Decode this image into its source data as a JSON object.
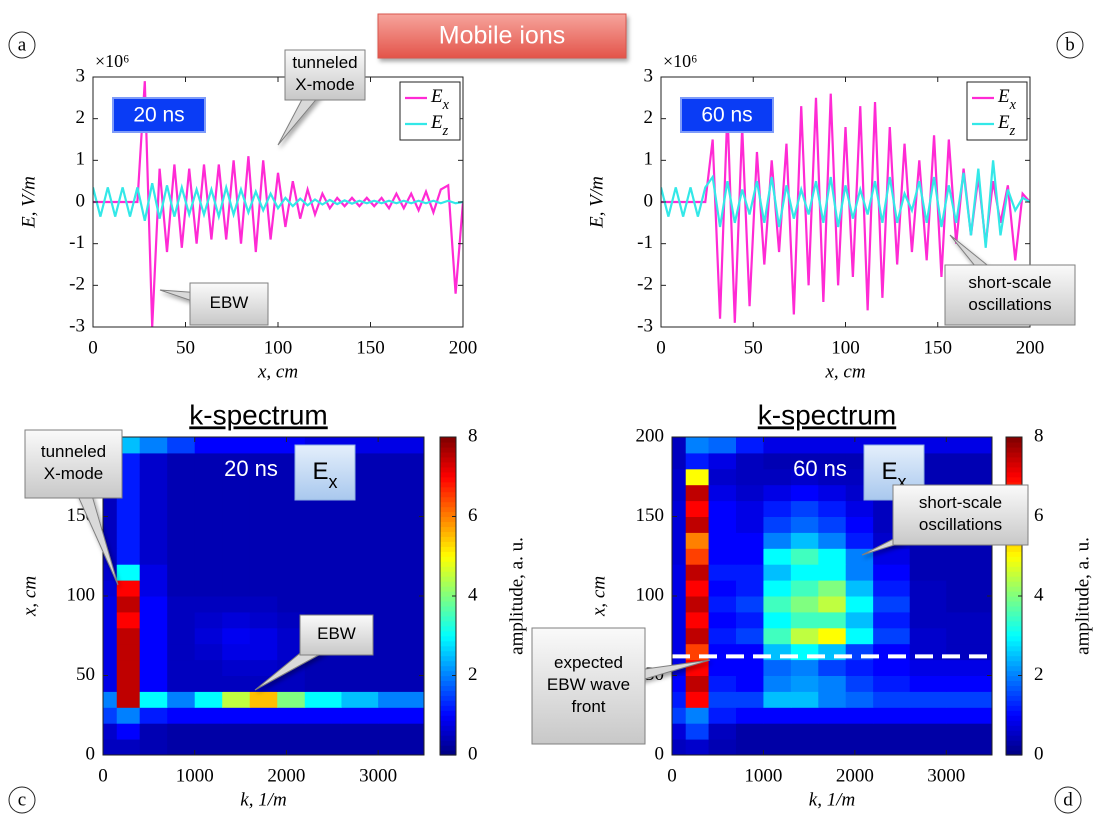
{
  "figure_title": "Mobile ions",
  "chart_data": [
    {
      "type": "line",
      "panel_label": "a",
      "time_label": "20 ns",
      "y_scale_label": "×10⁶",
      "x_label": "x, cm",
      "y_label": "E, V/m",
      "legend": "upper right",
      "x": [
        0,
        4,
        8,
        12,
        16,
        20,
        24,
        28,
        32,
        36,
        40,
        44,
        48,
        52,
        56,
        60,
        64,
        68,
        72,
        76,
        80,
        84,
        88,
        92,
        96,
        100,
        104,
        108,
        112,
        116,
        120,
        124,
        128,
        132,
        136,
        140,
        144,
        148,
        152,
        156,
        160,
        164,
        168,
        172,
        176,
        180,
        184,
        188,
        192,
        196,
        200
      ],
      "series": [
        {
          "name": "Ex",
          "color": "#ff2ad4",
          "values": [
            0,
            0,
            0,
            0,
            0,
            0,
            0,
            2.9,
            -3,
            0.8,
            -1.2,
            0.9,
            -1.1,
            0.8,
            -1.0,
            0.9,
            -0.9,
            0.9,
            -0.9,
            1.0,
            -1.0,
            1.1,
            -1.2,
            1.0,
            -0.9,
            0.7,
            -0.6,
            0.5,
            -0.4,
            0.3,
            -0.3,
            0.2,
            -0.15,
            0.1,
            -0.1,
            0.1,
            -0.1,
            0.1,
            -0.1,
            0.1,
            -0.15,
            0.2,
            -0.15,
            0.2,
            -0.2,
            0.25,
            -0.25,
            0.3,
            0.4,
            -2.2,
            0
          ]
        },
        {
          "name": "Ez",
          "color": "#33e8e8",
          "values": [
            0.35,
            -0.35,
            0.35,
            -0.35,
            0.35,
            -0.35,
            0.35,
            -0.45,
            0.45,
            -0.4,
            0.4,
            -0.35,
            0.35,
            -0.3,
            0.3,
            -0.3,
            0.3,
            -0.35,
            0.35,
            -0.3,
            0.3,
            -0.25,
            0.25,
            -0.2,
            0.2,
            -0.15,
            0.1,
            -0.1,
            0.08,
            -0.08,
            0.06,
            -0.06,
            0.05,
            -0.05,
            0.04,
            -0.04,
            0.03,
            -0.03,
            0.03,
            -0.03,
            0.03,
            -0.03,
            0.03,
            -0.03,
            0.03,
            -0.03,
            0.03,
            -0.03,
            0.03,
            -0.03,
            0
          ]
        }
      ],
      "xlim": [
        0,
        200
      ],
      "ylim": [
        -3,
        3
      ],
      "xticks": [
        0,
        50,
        100,
        150,
        200
      ],
      "yticks": [
        -3,
        -2,
        -1,
        0,
        1,
        2,
        3
      ],
      "annotations": [
        {
          "lines": [
            "tunneled",
            "X-mode"
          ]
        },
        {
          "lines": [
            "EBW"
          ]
        }
      ]
    },
    {
      "type": "line",
      "panel_label": "b",
      "time_label": "60 ns",
      "y_scale_label": "×10⁶",
      "x_label": "x, cm",
      "y_label": "E, V/m",
      "legend": "upper right",
      "x": [
        0,
        4,
        8,
        12,
        16,
        20,
        24,
        28,
        32,
        36,
        40,
        44,
        48,
        52,
        56,
        60,
        64,
        68,
        72,
        76,
        80,
        84,
        88,
        92,
        96,
        100,
        104,
        108,
        112,
        116,
        120,
        124,
        128,
        132,
        136,
        140,
        144,
        148,
        152,
        156,
        160,
        164,
        168,
        172,
        176,
        180,
        184,
        188,
        192,
        196,
        200
      ],
      "series": [
        {
          "name": "Ex",
          "color": "#ff2ad4",
          "values": [
            0,
            0,
            0,
            0,
            0,
            0,
            0,
            1.5,
            -2.8,
            2.2,
            -2.9,
            1.8,
            -2.5,
            1.2,
            -1.5,
            1.0,
            -1.2,
            1.4,
            -2.7,
            2.3,
            -2.0,
            2.5,
            -2.4,
            2.6,
            -2.0,
            1.8,
            -1.8,
            2.3,
            -2.6,
            2.4,
            -2.3,
            1.8,
            -1.5,
            1.4,
            -1.2,
            1.0,
            -1.4,
            1.6,
            -1.8,
            1.5,
            -1.0,
            0.8,
            -0.8,
            0.6,
            -1.0,
            0.5,
            -0.5,
            0.4,
            -1.4,
            0.2,
            0
          ]
        },
        {
          "name": "Ez",
          "color": "#33e8e8",
          "values": [
            0.35,
            -0.35,
            0.35,
            -0.35,
            0.35,
            -0.35,
            0.35,
            0.6,
            -0.6,
            0.5,
            -0.5,
            0.3,
            -0.3,
            0.5,
            -0.5,
            0.6,
            -0.6,
            0.4,
            -0.4,
            0.3,
            -0.3,
            0.5,
            -0.5,
            0.6,
            -0.6,
            0.4,
            -0.4,
            0.3,
            -0.3,
            0.5,
            -0.5,
            0.6,
            -0.5,
            0.2,
            -0.2,
            0.5,
            -0.5,
            0.6,
            -0.6,
            0.4,
            -0.5,
            0.7,
            -0.8,
            0.8,
            -1.1,
            1.0,
            -0.8,
            0.3,
            -0.2,
            0.1,
            0
          ]
        }
      ],
      "xlim": [
        0,
        200
      ],
      "ylim": [
        -3,
        3
      ],
      "xticks": [
        0,
        50,
        100,
        150,
        200
      ],
      "yticks": [
        -3,
        -2,
        -1,
        0,
        1,
        2,
        3
      ],
      "annotations": [
        {
          "lines": [
            "short-scale",
            "oscillations"
          ]
        }
      ]
    },
    {
      "type": "heatmap",
      "panel_label": "c",
      "title": "k-spectrum",
      "time_label": "20 ns",
      "field_label": "Ex",
      "x_label": "k, 1/m",
      "y_label": "x, cm",
      "colorbar_label": "amplitude, a. u.",
      "k_edges": [
        0,
        150,
        400,
        700,
        1000,
        1300,
        1600,
        1900,
        2200,
        2600,
        3000,
        3500
      ],
      "x_edges": [
        0,
        10,
        20,
        30,
        40,
        50,
        60,
        70,
        80,
        90,
        100,
        110,
        120,
        130,
        140,
        150,
        160,
        170,
        180,
        190,
        200
      ],
      "z": [
        [
          0.5,
          0.5,
          0.4,
          0.3,
          0.3,
          0.3,
          0.3,
          0.3,
          0.3,
          0.3,
          0.3
        ],
        [
          0.6,
          1.0,
          0.4,
          0.3,
          0.3,
          0.3,
          0.3,
          0.3,
          0.3,
          0.3,
          0.3
        ],
        [
          1.5,
          2.0,
          1.2,
          1.0,
          1.0,
          1.0,
          1.0,
          1.0,
          1.0,
          1.0,
          1.0
        ],
        [
          2.0,
          7.5,
          3.0,
          2.0,
          3.0,
          4.5,
          5.5,
          4.0,
          3.0,
          2.5,
          2.0
        ],
        [
          0.8,
          7.5,
          1.0,
          0.5,
          0.5,
          0.5,
          0.5,
          0.5,
          0.4,
          0.4,
          0.4
        ],
        [
          0.8,
          7.5,
          1.0,
          0.5,
          0.5,
          0.6,
          0.6,
          0.5,
          0.4,
          0.4,
          0.4
        ],
        [
          0.8,
          7.5,
          1.0,
          0.5,
          0.6,
          0.8,
          0.8,
          0.6,
          0.4,
          0.4,
          0.4
        ],
        [
          0.8,
          7.5,
          1.0,
          0.5,
          0.7,
          0.9,
          0.8,
          0.6,
          0.4,
          0.4,
          0.4
        ],
        [
          0.8,
          7.0,
          1.0,
          0.5,
          0.6,
          0.7,
          0.6,
          0.5,
          0.4,
          0.4,
          0.4
        ],
        [
          0.8,
          7.5,
          1.0,
          0.5,
          0.5,
          0.5,
          0.5,
          0.4,
          0.4,
          0.4,
          0.4
        ],
        [
          0.7,
          7.0,
          0.8,
          0.4,
          0.4,
          0.4,
          0.4,
          0.4,
          0.4,
          0.4,
          0.4
        ],
        [
          0.6,
          3.0,
          0.8,
          0.4,
          0.4,
          0.4,
          0.4,
          0.4,
          0.4,
          0.4,
          0.4
        ],
        [
          0.5,
          1.2,
          0.6,
          0.4,
          0.4,
          0.4,
          0.4,
          0.4,
          0.4,
          0.4,
          0.4
        ],
        [
          0.5,
          1.2,
          0.6,
          0.4,
          0.4,
          0.4,
          0.4,
          0.4,
          0.4,
          0.4,
          0.4
        ],
        [
          0.5,
          1.2,
          0.6,
          0.4,
          0.4,
          0.4,
          0.4,
          0.4,
          0.4,
          0.4,
          0.4
        ],
        [
          0.5,
          1.2,
          0.6,
          0.4,
          0.4,
          0.4,
          0.4,
          0.4,
          0.4,
          0.4,
          0.4
        ],
        [
          0.5,
          1.2,
          0.6,
          0.4,
          0.4,
          0.4,
          0.4,
          0.4,
          0.4,
          0.4,
          0.4
        ],
        [
          0.5,
          1.2,
          0.6,
          0.4,
          0.4,
          0.4,
          0.4,
          0.4,
          0.4,
          0.4,
          0.4
        ],
        [
          0.5,
          1.2,
          0.6,
          0.4,
          0.4,
          0.4,
          0.4,
          0.4,
          0.4,
          0.4,
          0.4
        ],
        [
          0.5,
          2.5,
          2.0,
          1.5,
          1.0,
          1.0,
          1.0,
          1.0,
          0.8,
          0.8,
          0.8
        ]
      ],
      "xlim": [
        0,
        3500
      ],
      "ylim": [
        0,
        200
      ],
      "xticks": [
        0,
        1000,
        2000,
        3000
      ],
      "yticks": [
        0,
        50,
        100,
        150
      ],
      "clim": [
        0,
        8
      ],
      "cticks": [
        0,
        2,
        4,
        6,
        8
      ],
      "annotations": [
        {
          "lines": [
            "tunneled",
            "X-mode"
          ]
        },
        {
          "lines": [
            "EBW"
          ]
        }
      ]
    },
    {
      "type": "heatmap",
      "panel_label": "d",
      "title": "k-spectrum",
      "time_label": "60 ns",
      "field_label": "Ex",
      "x_label": "k, 1/m",
      "y_label": "x, cm",
      "colorbar_label": "amplitude, a. u.",
      "k_edges": [
        0,
        150,
        400,
        700,
        1000,
        1300,
        1600,
        1900,
        2200,
        2600,
        3000,
        3500
      ],
      "x_edges": [
        0,
        10,
        20,
        30,
        40,
        50,
        60,
        70,
        80,
        90,
        100,
        110,
        120,
        130,
        140,
        150,
        160,
        170,
        180,
        190,
        200
      ],
      "z": [
        [
          0.5,
          0.6,
          0.4,
          0.3,
          0.3,
          0.3,
          0.3,
          0.3,
          0.3,
          0.3,
          0.3
        ],
        [
          0.7,
          1.5,
          0.5,
          0.3,
          0.3,
          0.3,
          0.3,
          0.3,
          0.3,
          0.3,
          0.3
        ],
        [
          1.5,
          2.0,
          1.2,
          1.0,
          1.0,
          1.0,
          1.0,
          1.0,
          1.0,
          1.0,
          1.0
        ],
        [
          1.2,
          7.0,
          1.5,
          1.5,
          2.5,
          2.5,
          2.0,
          1.8,
          1.5,
          1.5,
          1.5
        ],
        [
          1.0,
          7.5,
          1.2,
          1.0,
          2.0,
          2.2,
          2.0,
          1.5,
          1.2,
          1.0,
          1.0
        ],
        [
          0.8,
          7.0,
          1.0,
          1.0,
          1.8,
          2.0,
          1.5,
          1.2,
          1.0,
          0.8,
          0.8
        ],
        [
          0.8,
          6.5,
          1.0,
          1.0,
          2.5,
          3.0,
          2.5,
          1.5,
          1.0,
          0.6,
          0.5
        ],
        [
          0.8,
          7.5,
          1.2,
          1.5,
          3.5,
          4.5,
          5.0,
          3.0,
          1.5,
          0.6,
          0.5
        ],
        [
          0.8,
          7.0,
          1.0,
          1.2,
          3.0,
          3.5,
          3.5,
          2.5,
          1.2,
          0.5,
          0.5
        ],
        [
          0.8,
          7.5,
          1.2,
          1.5,
          3.5,
          4.0,
          4.5,
          3.0,
          1.5,
          0.5,
          0.4
        ],
        [
          0.8,
          7.0,
          1.0,
          1.2,
          3.0,
          3.5,
          4.0,
          2.5,
          1.2,
          0.5,
          0.4
        ],
        [
          0.8,
          7.5,
          1.2,
          1.2,
          2.5,
          3.0,
          3.0,
          2.0,
          1.0,
          0.4,
          0.4
        ],
        [
          0.7,
          6.5,
          1.0,
          1.0,
          3.0,
          3.5,
          3.0,
          2.0,
          0.8,
          0.4,
          0.4
        ],
        [
          0.7,
          6.0,
          1.0,
          1.0,
          2.0,
          2.5,
          2.0,
          1.2,
          0.6,
          0.4,
          0.4
        ],
        [
          0.7,
          7.5,
          1.0,
          0.8,
          1.5,
          1.8,
          1.5,
          1.0,
          0.5,
          0.4,
          0.4
        ],
        [
          0.7,
          7.0,
          1.0,
          0.8,
          1.2,
          1.5,
          1.2,
          0.8,
          0.5,
          0.4,
          0.4
        ],
        [
          0.6,
          7.5,
          0.8,
          0.6,
          0.8,
          1.0,
          0.8,
          0.6,
          0.4,
          0.4,
          0.4
        ],
        [
          0.6,
          5.0,
          0.6,
          0.5,
          0.5,
          0.6,
          0.5,
          0.5,
          0.4,
          0.4,
          0.4
        ],
        [
          0.5,
          1.2,
          0.8,
          0.5,
          0.4,
          0.4,
          0.4,
          0.4,
          0.4,
          0.4,
          0.4
        ],
        [
          0.5,
          2.0,
          1.8,
          1.2,
          0.8,
          0.8,
          0.8,
          0.8,
          0.8,
          0.8,
          0.8
        ]
      ],
      "xlim": [
        0,
        3500
      ],
      "ylim": [
        0,
        200
      ],
      "xticks": [
        0,
        1000,
        2000,
        3000
      ],
      "yticks": [
        0,
        50,
        100,
        150,
        200
      ],
      "clim": [
        0,
        8
      ],
      "cticks": [
        0,
        2,
        4,
        6,
        8
      ],
      "dashed_line_x": 62,
      "annotations": [
        {
          "lines": [
            "short-scale",
            "oscillations"
          ]
        },
        {
          "lines": [
            "expected",
            "EBW wave",
            "front"
          ]
        }
      ]
    }
  ]
}
